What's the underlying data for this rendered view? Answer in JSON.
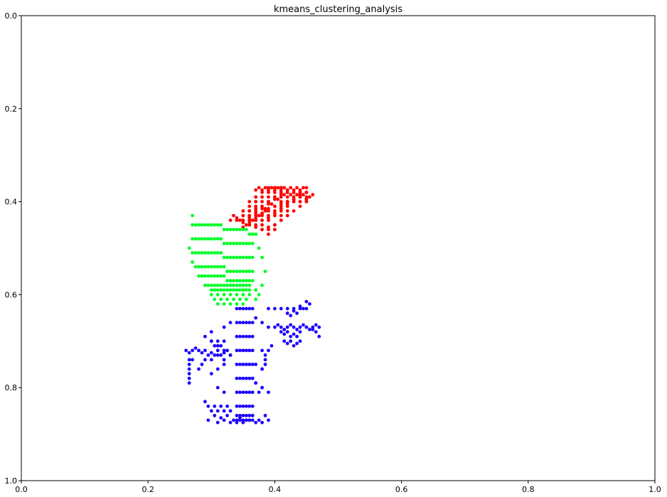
{
  "chart_data": {
    "type": "scatter",
    "title": "kmeans_clustering_analysis",
    "xlabel": "",
    "ylabel": "",
    "xlim": [
      0.0,
      1.0
    ],
    "ylim": [
      1.0,
      0.0
    ],
    "y_inverted": true,
    "grid": false,
    "xticks": [
      "0.0",
      "0.2",
      "0.4",
      "0.6",
      "0.8",
      "1.0"
    ],
    "yticks": [
      "0.0",
      "0.2",
      "0.4",
      "0.6",
      "0.8",
      "1.0"
    ],
    "series": [
      {
        "color": "#ff0000",
        "x": [
          0.34,
          0.35,
          0.36,
          0.36,
          0.37,
          0.37,
          0.38,
          0.38,
          0.39,
          0.39,
          0.4,
          0.4,
          0.41,
          0.41,
          0.42,
          0.42,
          0.43,
          0.43,
          0.44,
          0.44,
          0.45,
          0.45,
          0.45,
          0.35,
          0.36,
          0.37,
          0.38,
          0.39,
          0.4,
          0.41,
          0.42,
          0.43,
          0.44,
          0.38,
          0.39,
          0.4,
          0.41,
          0.42,
          0.36,
          0.37,
          0.38,
          0.39,
          0.4,
          0.41,
          0.42,
          0.43,
          0.44,
          0.45,
          0.35,
          0.36,
          0.37,
          0.38,
          0.39,
          0.4,
          0.41,
          0.42,
          0.43,
          0.44,
          0.39,
          0.4,
          0.41,
          0.42,
          0.43,
          0.44,
          0.45,
          0.36,
          0.37,
          0.38,
          0.39,
          0.4,
          0.41,
          0.42,
          0.35,
          0.36,
          0.37,
          0.38,
          0.39,
          0.4,
          0.41,
          0.37,
          0.38,
          0.36,
          0.37,
          0.38,
          0.385,
          0.39,
          0.395,
          0.4,
          0.405,
          0.41,
          0.415,
          0.42,
          0.425,
          0.43,
          0.435,
          0.44,
          0.445,
          0.45,
          0.46,
          0.455,
          0.45,
          0.44,
          0.43,
          0.42,
          0.41,
          0.4,
          0.39,
          0.385,
          0.38,
          0.375,
          0.37,
          0.365,
          0.36,
          0.355,
          0.35,
          0.345,
          0.34,
          0.335,
          0.33,
          0.37,
          0.375,
          0.38,
          0.385,
          0.39,
          0.395,
          0.4,
          0.405,
          0.41,
          0.415,
          0.42,
          0.425,
          0.43,
          0.435,
          0.44,
          0.445,
          0.35,
          0.36,
          0.37,
          0.38,
          0.39,
          0.4,
          0.41,
          0.42,
          0.43,
          0.44,
          0.45,
          0.37,
          0.38,
          0.39,
          0.4,
          0.41,
          0.42,
          0.43,
          0.44,
          0.45,
          0.36,
          0.37,
          0.38,
          0.39,
          0.4,
          0.41,
          0.42
        ],
        "y": [
          0.44,
          0.44,
          0.43,
          0.45,
          0.42,
          0.44,
          0.41,
          0.43,
          0.4,
          0.42,
          0.39,
          0.41,
          0.38,
          0.4,
          0.38,
          0.39,
          0.38,
          0.39,
          0.38,
          0.4,
          0.38,
          0.39,
          0.4,
          0.43,
          0.42,
          0.41,
          0.4,
          0.39,
          0.38,
          0.39,
          0.4,
          0.39,
          0.39,
          0.45,
          0.44,
          0.43,
          0.42,
          0.41,
          0.41,
          0.4,
          0.39,
          0.38,
          0.37,
          0.37,
          0.38,
          0.38,
          0.38,
          0.38,
          0.42,
          0.43,
          0.44,
          0.44,
          0.43,
          0.42,
          0.41,
          0.4,
          0.4,
          0.39,
          0.46,
          0.45,
          0.43,
          0.42,
          0.4,
          0.38,
          0.37,
          0.44,
          0.45,
          0.46,
          0.47,
          0.46,
          0.44,
          0.43,
          0.43,
          0.4,
          0.39,
          0.38,
          0.37,
          0.37,
          0.37,
          0.43,
          0.44,
          0.42,
          0.4,
          0.41,
          0.415,
          0.4,
          0.405,
          0.39,
          0.395,
          0.38,
          0.385,
          0.38,
          0.385,
          0.38,
          0.385,
          0.38,
          0.385,
          0.38,
          0.385,
          0.39,
          0.395,
          0.4,
          0.395,
          0.4,
          0.405,
          0.41,
          0.415,
          0.42,
          0.425,
          0.43,
          0.435,
          0.44,
          0.445,
          0.45,
          0.445,
          0.44,
          0.435,
          0.43,
          0.44,
          0.375,
          0.37,
          0.375,
          0.37,
          0.375,
          0.37,
          0.375,
          0.37,
          0.375,
          0.37,
          0.375,
          0.37,
          0.375,
          0.37,
          0.375,
          0.37,
          0.455,
          0.45,
          0.455,
          0.46,
          0.455,
          0.45,
          0.44,
          0.43,
          0.42,
          0.41,
          0.4,
          0.415,
          0.425,
          0.435,
          0.425,
          0.415,
          0.405,
          0.395,
          0.385,
          0.395,
          0.435,
          0.425,
          0.415,
          0.405,
          0.395,
          0.385,
          0.375
        ]
      },
      {
        "color": "#00ff27",
        "x": [
          0.27,
          0.275,
          0.28,
          0.285,
          0.29,
          0.295,
          0.3,
          0.305,
          0.31,
          0.315,
          0.32,
          0.325,
          0.33,
          0.335,
          0.34,
          0.345,
          0.35,
          0.355,
          0.36,
          0.365,
          0.37,
          0.27,
          0.275,
          0.28,
          0.285,
          0.29,
          0.295,
          0.3,
          0.305,
          0.31,
          0.315,
          0.32,
          0.325,
          0.33,
          0.335,
          0.34,
          0.345,
          0.35,
          0.355,
          0.36,
          0.365,
          0.27,
          0.275,
          0.28,
          0.285,
          0.29,
          0.295,
          0.3,
          0.305,
          0.31,
          0.315,
          0.32,
          0.325,
          0.33,
          0.335,
          0.34,
          0.345,
          0.35,
          0.355,
          0.36,
          0.365,
          0.275,
          0.28,
          0.285,
          0.29,
          0.295,
          0.3,
          0.305,
          0.31,
          0.315,
          0.32,
          0.325,
          0.33,
          0.335,
          0.34,
          0.345,
          0.35,
          0.355,
          0.36,
          0.365,
          0.28,
          0.285,
          0.29,
          0.295,
          0.3,
          0.305,
          0.31,
          0.315,
          0.32,
          0.325,
          0.33,
          0.335,
          0.34,
          0.345,
          0.35,
          0.355,
          0.36,
          0.365,
          0.29,
          0.295,
          0.3,
          0.305,
          0.31,
          0.315,
          0.32,
          0.325,
          0.33,
          0.335,
          0.34,
          0.345,
          0.35,
          0.355,
          0.36,
          0.3,
          0.305,
          0.31,
          0.315,
          0.32,
          0.325,
          0.33,
          0.335,
          0.34,
          0.345,
          0.35,
          0.355,
          0.36,
          0.3,
          0.31,
          0.32,
          0.33,
          0.34,
          0.35,
          0.36,
          0.305,
          0.315,
          0.325,
          0.335,
          0.345,
          0.355,
          0.31,
          0.32,
          0.33,
          0.34,
          0.35,
          0.27,
          0.265,
          0.27,
          0.375,
          0.38,
          0.385,
          0.38,
          0.375,
          0.37,
          0.37
        ],
        "y": [
          0.45,
          0.45,
          0.45,
          0.45,
          0.45,
          0.45,
          0.45,
          0.45,
          0.45,
          0.45,
          0.46,
          0.46,
          0.46,
          0.46,
          0.46,
          0.46,
          0.46,
          0.46,
          0.47,
          0.47,
          0.47,
          0.48,
          0.48,
          0.48,
          0.48,
          0.48,
          0.48,
          0.48,
          0.48,
          0.48,
          0.48,
          0.49,
          0.49,
          0.49,
          0.49,
          0.49,
          0.49,
          0.49,
          0.49,
          0.49,
          0.49,
          0.51,
          0.51,
          0.51,
          0.51,
          0.51,
          0.51,
          0.51,
          0.51,
          0.51,
          0.51,
          0.52,
          0.52,
          0.52,
          0.52,
          0.52,
          0.52,
          0.52,
          0.52,
          0.52,
          0.52,
          0.54,
          0.54,
          0.54,
          0.54,
          0.54,
          0.54,
          0.54,
          0.54,
          0.54,
          0.54,
          0.55,
          0.55,
          0.55,
          0.55,
          0.55,
          0.55,
          0.55,
          0.55,
          0.55,
          0.56,
          0.56,
          0.56,
          0.56,
          0.56,
          0.56,
          0.56,
          0.56,
          0.56,
          0.57,
          0.57,
          0.57,
          0.57,
          0.57,
          0.57,
          0.57,
          0.57,
          0.57,
          0.58,
          0.58,
          0.58,
          0.58,
          0.58,
          0.58,
          0.58,
          0.58,
          0.58,
          0.58,
          0.58,
          0.58,
          0.58,
          0.58,
          0.58,
          0.59,
          0.59,
          0.59,
          0.59,
          0.59,
          0.59,
          0.59,
          0.59,
          0.59,
          0.59,
          0.59,
          0.59,
          0.59,
          0.6,
          0.6,
          0.6,
          0.6,
          0.6,
          0.6,
          0.6,
          0.61,
          0.61,
          0.61,
          0.61,
          0.61,
          0.61,
          0.62,
          0.62,
          0.62,
          0.62,
          0.62,
          0.43,
          0.5,
          0.53,
          0.5,
          0.52,
          0.55,
          0.58,
          0.6,
          0.59,
          0.61
        ]
      },
      {
        "color": "#1a00ff",
        "x": [
          0.34,
          0.345,
          0.35,
          0.355,
          0.36,
          0.365,
          0.34,
          0.345,
          0.35,
          0.355,
          0.36,
          0.365,
          0.34,
          0.345,
          0.35,
          0.355,
          0.36,
          0.365,
          0.34,
          0.345,
          0.35,
          0.355,
          0.36,
          0.365,
          0.34,
          0.345,
          0.35,
          0.355,
          0.36,
          0.365,
          0.34,
          0.345,
          0.35,
          0.355,
          0.36,
          0.365,
          0.34,
          0.345,
          0.35,
          0.355,
          0.36,
          0.365,
          0.34,
          0.345,
          0.35,
          0.355,
          0.36,
          0.365,
          0.34,
          0.345,
          0.35,
          0.355,
          0.36,
          0.365,
          0.34,
          0.345,
          0.35,
          0.355,
          0.36,
          0.365,
          0.26,
          0.265,
          0.27,
          0.275,
          0.28,
          0.285,
          0.29,
          0.295,
          0.3,
          0.305,
          0.31,
          0.315,
          0.32,
          0.325,
          0.33,
          0.265,
          0.265,
          0.265,
          0.265,
          0.265,
          0.265,
          0.27,
          0.28,
          0.285,
          0.29,
          0.3,
          0.31,
          0.32,
          0.3,
          0.305,
          0.31,
          0.315,
          0.32,
          0.3,
          0.31,
          0.32,
          0.33,
          0.29,
          0.295,
          0.3,
          0.305,
          0.31,
          0.315,
          0.32,
          0.325,
          0.33,
          0.38,
          0.385,
          0.39,
          0.395,
          0.38,
          0.385,
          0.38,
          0.37,
          0.375,
          0.39,
          0.4,
          0.41,
          0.42,
          0.43,
          0.44,
          0.45,
          0.4,
          0.405,
          0.41,
          0.415,
          0.42,
          0.425,
          0.43,
          0.435,
          0.44,
          0.445,
          0.45,
          0.455,
          0.46,
          0.465,
          0.47,
          0.41,
          0.415,
          0.42,
          0.425,
          0.43,
          0.435,
          0.44,
          0.42,
          0.425,
          0.43,
          0.435,
          0.44,
          0.445,
          0.45,
          0.455,
          0.45,
          0.46,
          0.465,
          0.47,
          0.415,
          0.42,
          0.425,
          0.43,
          0.435,
          0.44,
          0.305,
          0.315,
          0.325,
          0.335,
          0.345,
          0.355,
          0.365,
          0.375,
          0.385,
          0.295,
          0.31,
          0.32,
          0.33,
          0.34,
          0.35,
          0.36,
          0.37,
          0.38,
          0.39,
          0.31,
          0.32,
          0.37,
          0.38,
          0.39,
          0.3,
          0.32,
          0.33,
          0.37,
          0.38,
          0.39,
          0.29,
          0.3,
          0.31,
          0.32,
          0.37,
          0.38,
          0.385
        ],
        "y": [
          0.63,
          0.63,
          0.63,
          0.63,
          0.63,
          0.63,
          0.66,
          0.66,
          0.66,
          0.66,
          0.66,
          0.66,
          0.69,
          0.69,
          0.69,
          0.69,
          0.69,
          0.69,
          0.72,
          0.72,
          0.72,
          0.72,
          0.72,
          0.72,
          0.75,
          0.75,
          0.75,
          0.75,
          0.75,
          0.75,
          0.78,
          0.78,
          0.78,
          0.78,
          0.78,
          0.78,
          0.81,
          0.81,
          0.81,
          0.81,
          0.81,
          0.81,
          0.84,
          0.84,
          0.84,
          0.84,
          0.84,
          0.84,
          0.86,
          0.86,
          0.86,
          0.86,
          0.86,
          0.86,
          0.87,
          0.87,
          0.87,
          0.87,
          0.87,
          0.87,
          0.72,
          0.725,
          0.72,
          0.715,
          0.72,
          0.725,
          0.72,
          0.73,
          0.725,
          0.73,
          0.72,
          0.73,
          0.725,
          0.72,
          0.73,
          0.74,
          0.75,
          0.76,
          0.77,
          0.78,
          0.79,
          0.74,
          0.76,
          0.75,
          0.74,
          0.77,
          0.76,
          0.75,
          0.7,
          0.71,
          0.7,
          0.71,
          0.7,
          0.74,
          0.73,
          0.74,
          0.73,
          0.83,
          0.84,
          0.85,
          0.84,
          0.85,
          0.84,
          0.85,
          0.84,
          0.85,
          0.72,
          0.73,
          0.72,
          0.71,
          0.76,
          0.75,
          0.8,
          0.79,
          0.81,
          0.63,
          0.63,
          0.63,
          0.63,
          0.63,
          0.63,
          0.63,
          0.67,
          0.665,
          0.67,
          0.675,
          0.67,
          0.665,
          0.67,
          0.675,
          0.67,
          0.665,
          0.67,
          0.675,
          0.67,
          0.665,
          0.67,
          0.68,
          0.685,
          0.68,
          0.69,
          0.685,
          0.69,
          0.68,
          0.64,
          0.645,
          0.635,
          0.64,
          0.625,
          0.63,
          0.615,
          0.62,
          0.67,
          0.675,
          0.68,
          0.69,
          0.7,
          0.705,
          0.7,
          0.71,
          0.705,
          0.7,
          0.86,
          0.865,
          0.86,
          0.87,
          0.865,
          0.87,
          0.86,
          0.87,
          0.86,
          0.87,
          0.875,
          0.87,
          0.875,
          0.875,
          0.875,
          0.87,
          0.875,
          0.875,
          0.87,
          0.8,
          0.81,
          0.79,
          0.8,
          0.81,
          0.68,
          0.67,
          0.66,
          0.65,
          0.66,
          0.67,
          0.69,
          0.7,
          0.71,
          0.72,
          0.75,
          0.76,
          0.74
        ]
      }
    ]
  }
}
